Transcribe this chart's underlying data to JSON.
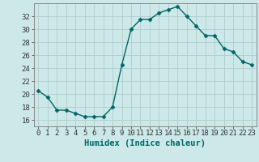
{
  "x": [
    0,
    1,
    2,
    3,
    4,
    5,
    6,
    7,
    8,
    9,
    10,
    11,
    12,
    13,
    14,
    15,
    16,
    17,
    18,
    19,
    20,
    21,
    22,
    23
  ],
  "y": [
    20.5,
    19.5,
    17.5,
    17.5,
    17.0,
    16.5,
    16.5,
    16.5,
    18.0,
    24.5,
    30.0,
    31.5,
    31.5,
    32.5,
    33.0,
    33.5,
    32.0,
    30.5,
    29.0,
    29.0,
    27.0,
    26.5,
    25.0,
    24.5
  ],
  "line_color": "#006666",
  "marker": "D",
  "marker_size": 2.5,
  "linewidth": 1.0,
  "xlabel": "Humidex (Indice chaleur)",
  "ylabel": "",
  "ylim": [
    15,
    34
  ],
  "xlim": [
    -0.5,
    23.5
  ],
  "yticks": [
    16,
    18,
    20,
    22,
    24,
    26,
    28,
    30,
    32
  ],
  "xticks": [
    0,
    1,
    2,
    3,
    4,
    5,
    6,
    7,
    8,
    9,
    10,
    11,
    12,
    13,
    14,
    15,
    16,
    17,
    18,
    19,
    20,
    21,
    22,
    23
  ],
  "xtick_labels": [
    "0",
    "1",
    "2",
    "3",
    "4",
    "5",
    "6",
    "7",
    "8",
    "9",
    "10",
    "11",
    "12",
    "13",
    "14",
    "15",
    "16",
    "17",
    "18",
    "19",
    "20",
    "21",
    "22",
    "23"
  ],
  "bg_color": "#cde8e8",
  "grid_color": "#b0cccc",
  "tick_fontsize": 6.5,
  "xlabel_fontsize": 7.5,
  "title": ""
}
